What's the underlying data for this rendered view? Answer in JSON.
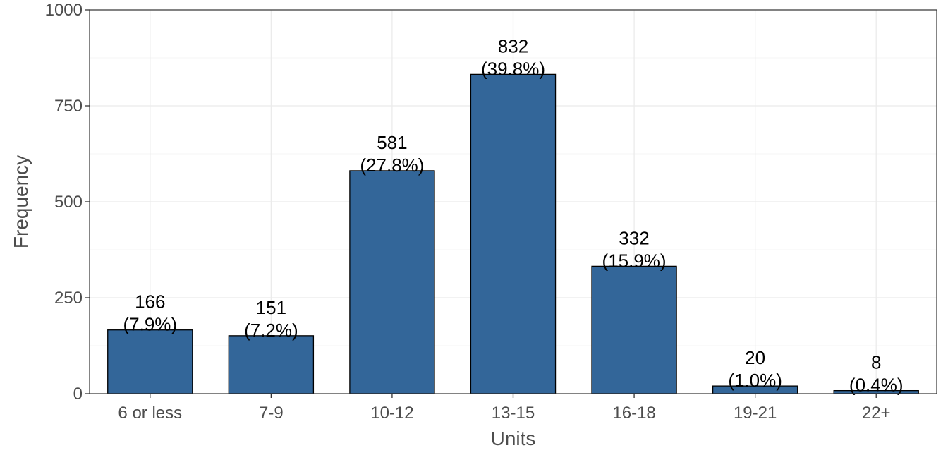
{
  "chart_data": {
    "type": "bar",
    "title": "",
    "xlabel": "Units",
    "ylabel": "Frequency",
    "categories": [
      "6 or less",
      "7-9",
      "10-12",
      "13-15",
      "16-18",
      "19-21",
      "22+"
    ],
    "values": [
      166,
      151,
      581,
      832,
      332,
      20,
      8
    ],
    "count_labels": [
      "166",
      "151",
      "581",
      "832",
      "332",
      "20",
      "8"
    ],
    "percent_labels": [
      "(7.9%)",
      "(7.2%)",
      "(27.8%)",
      "(39.8%)",
      "(15.9%)",
      "(1.0%)",
      "(0.4%)"
    ],
    "ylim": [
      0,
      1000
    ],
    "yticks": [
      0,
      250,
      500,
      750,
      1000
    ],
    "ytick_labels": [
      "0",
      "250",
      "500",
      "750",
      "1000"
    ],
    "grid": true,
    "legend": "none",
    "colors": {
      "bar_fill": "#336699",
      "bar_stroke": "#000000",
      "grid_major": "#ebebeb",
      "grid_minor": "#f4f4f4",
      "panel_border": "#333333"
    }
  }
}
